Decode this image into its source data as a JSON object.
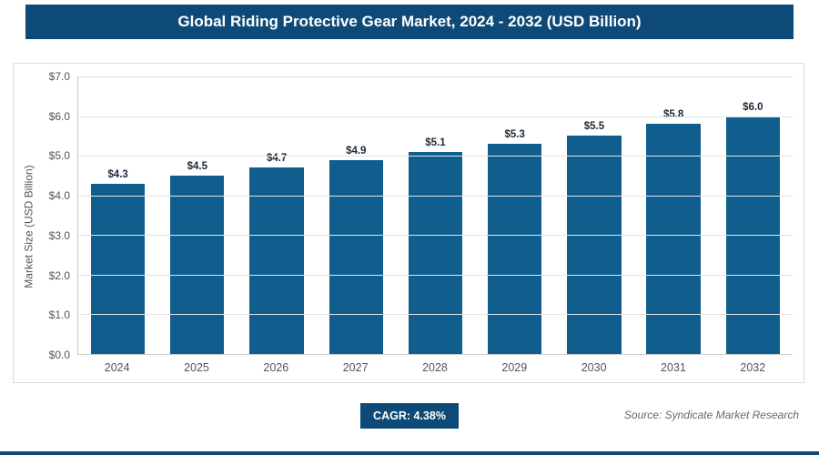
{
  "header": {
    "title": "Global Riding Protective Gear Market, 2024 - 2032 (USD Billion)"
  },
  "chart_data": {
    "type": "bar",
    "title": "Global Riding Protective Gear Market, 2024 - 2032 (USD Billion)",
    "categories": [
      "2024",
      "2025",
      "2026",
      "2027",
      "2028",
      "2029",
      "2030",
      "2031",
      "2032"
    ],
    "values": [
      4.3,
      4.5,
      4.7,
      4.9,
      5.1,
      5.3,
      5.5,
      5.8,
      6.0
    ],
    "value_labels": [
      "$4.3",
      "$4.5",
      "$4.7",
      "$4.9",
      "$5.1",
      "$5.3",
      "$5.5",
      "$5.8",
      "$6.0"
    ],
    "xlabel": "",
    "ylabel": "Market Size (USD Billion)",
    "ylim": [
      0,
      7
    ],
    "ytick_step": 1,
    "ytick_labels": [
      "$0.0",
      "$1.0",
      "$2.0",
      "$3.0",
      "$4.0",
      "$5.0",
      "$6.0",
      "$7.0"
    ],
    "grid": true,
    "legend": "none",
    "bar_color": "#0f5e8e"
  },
  "footer": {
    "cagr_label": "CAGR: 4.38%",
    "source": "Source: Syndicate Market Research"
  },
  "colors": {
    "accent": "#0d4a77",
    "bar": "#0f5e8e"
  }
}
